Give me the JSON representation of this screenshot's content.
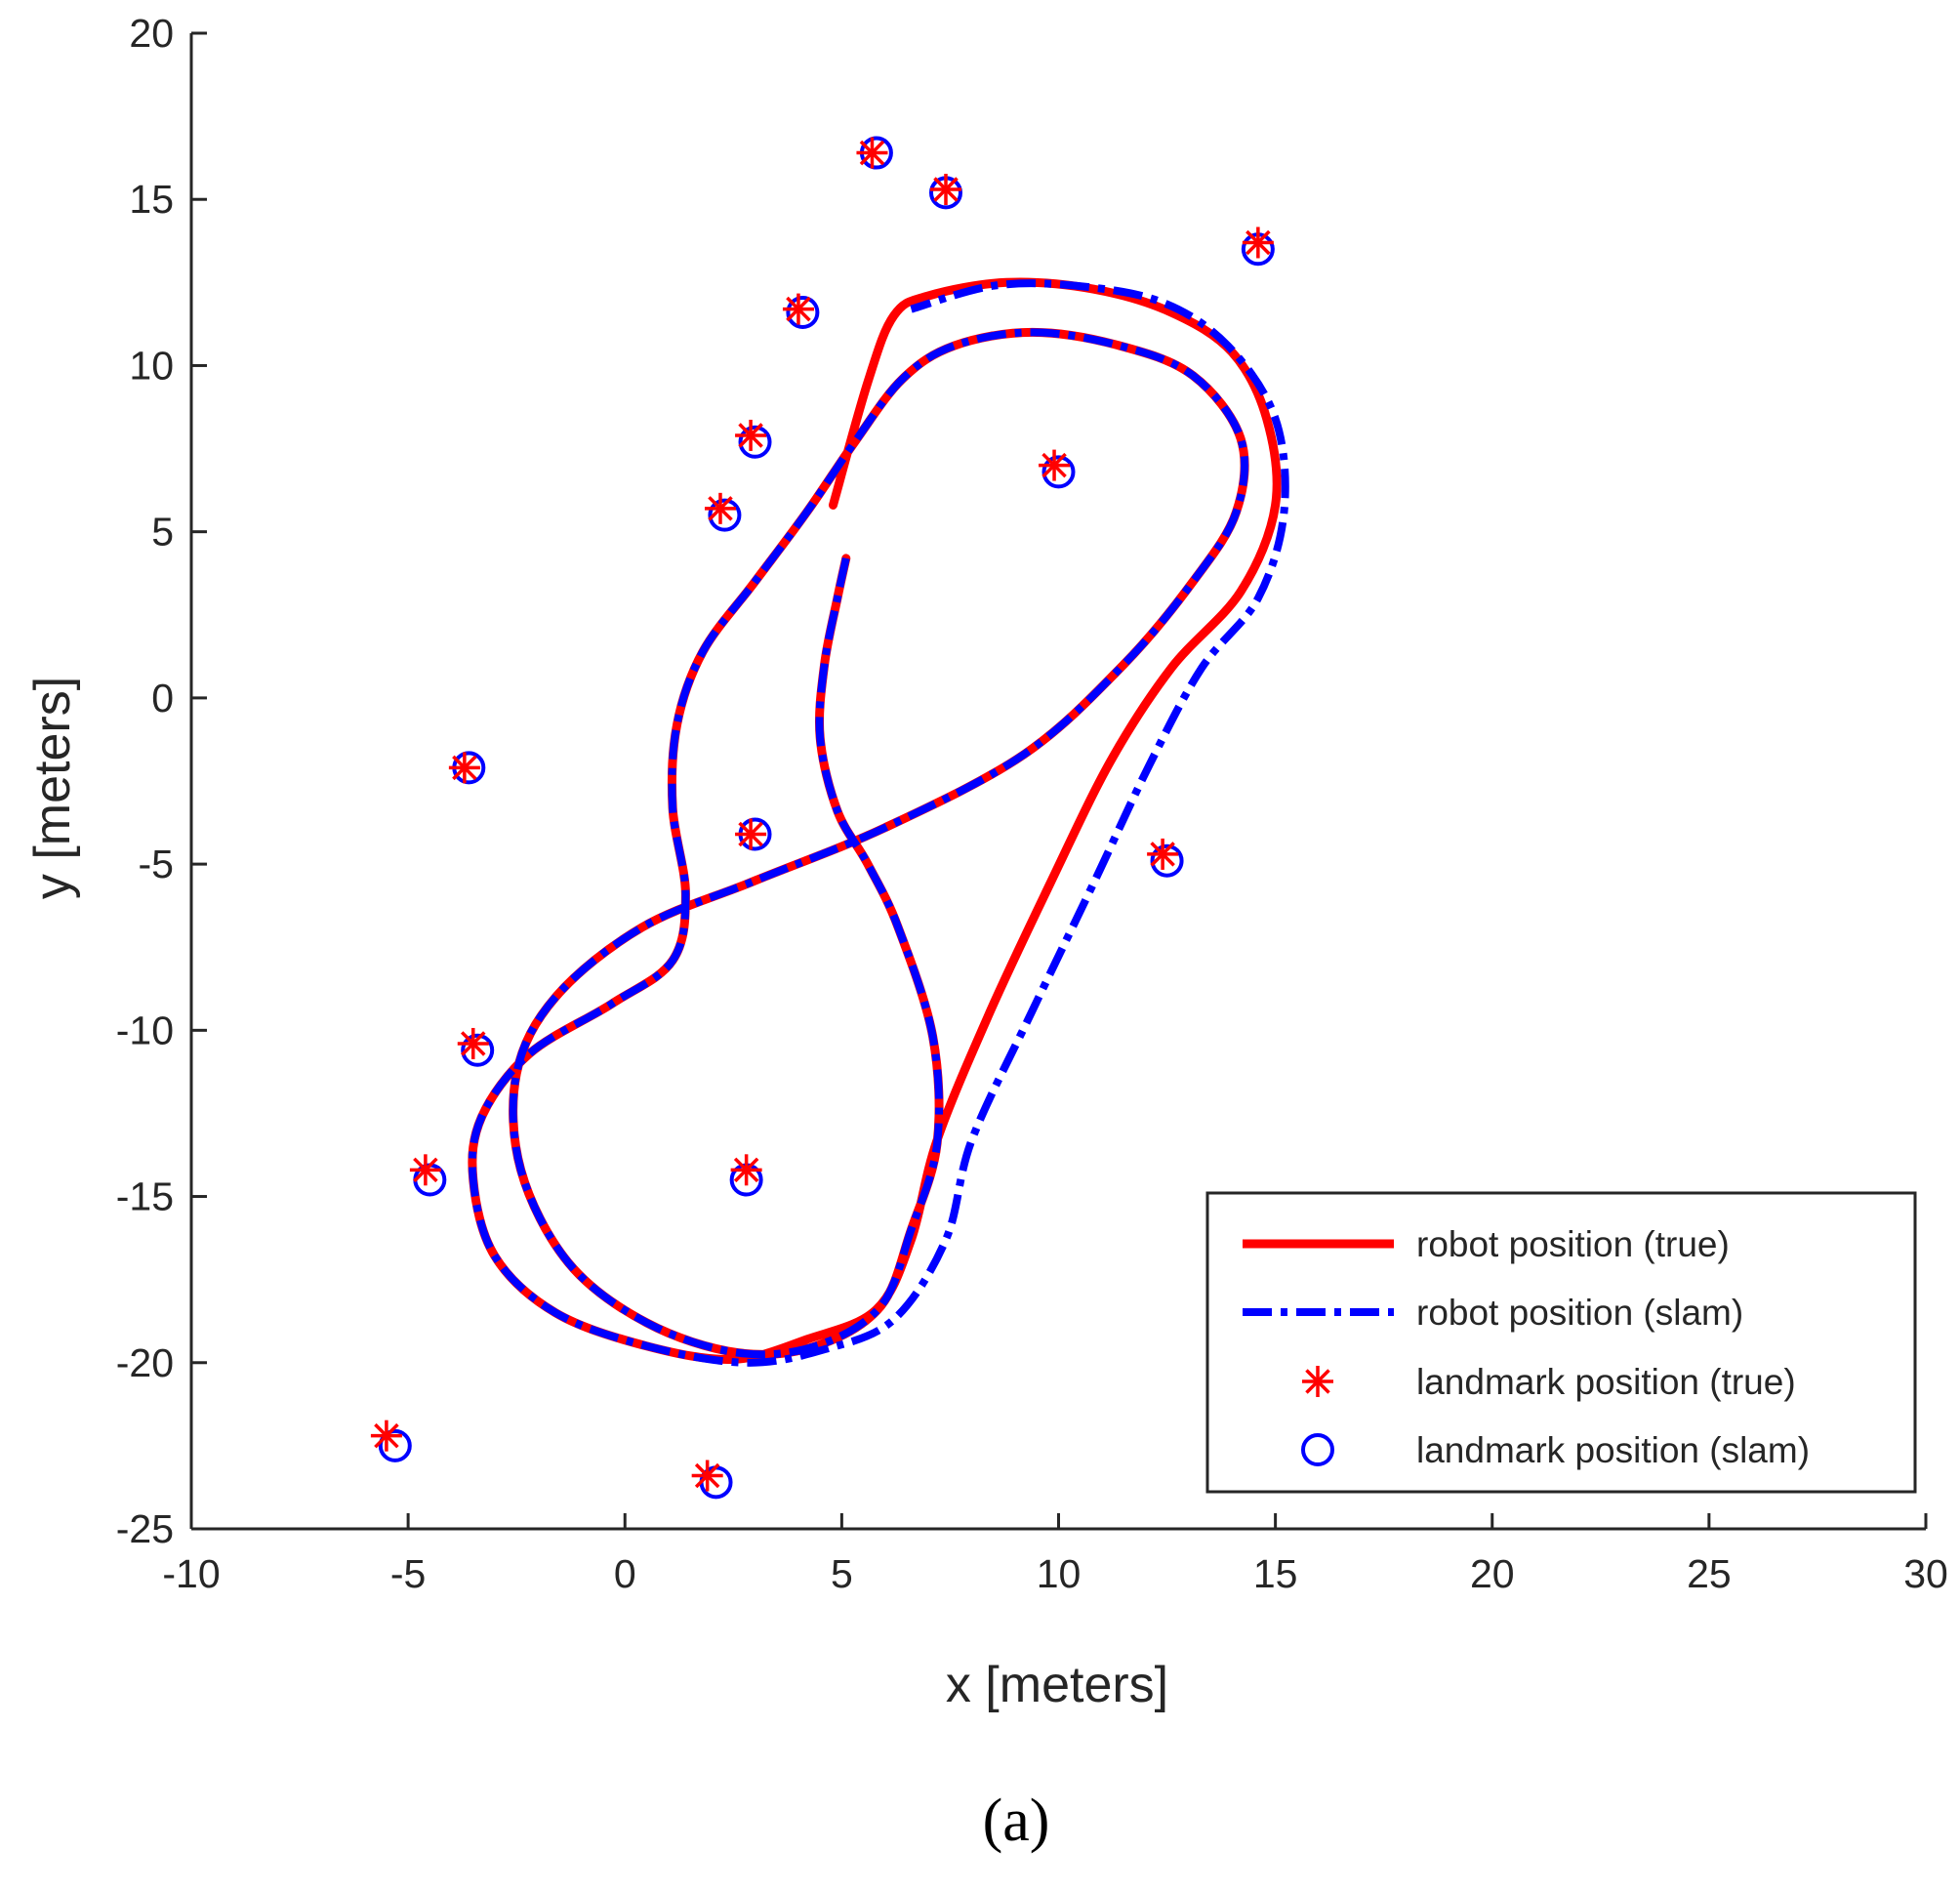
{
  "colors": {
    "true": "#ff0000",
    "slam": "#0000ff",
    "axis": "#262626"
  },
  "chart_data": {
    "type": "scatter",
    "xlabel": "x [meters]",
    "ylabel": "y [meters]",
    "xlim": [
      -10,
      30
    ],
    "ylim": [
      -25,
      20
    ],
    "xticks": [
      -10,
      -5,
      0,
      5,
      10,
      15,
      20,
      25,
      30
    ],
    "yticks": [
      20,
      15,
      10,
      5,
      0,
      -5,
      -10,
      -15,
      -20,
      -25
    ],
    "legend_position": "bottom-right",
    "legend": [
      "robot position (true)",
      "robot position (slam)",
      "landmark position (true)",
      "landmark position (slam)"
    ],
    "series": [
      {
        "name": "robot position (true)",
        "kind": "line",
        "points": [
          [
            4.8,
            5.8
          ],
          [
            5.6,
            9.5
          ],
          [
            6.2,
            11.5
          ],
          [
            7.0,
            12.1
          ],
          [
            8.8,
            12.5
          ],
          [
            10.8,
            12.3
          ],
          [
            12.6,
            11.6
          ],
          [
            14.0,
            10.4
          ],
          [
            14.8,
            8.4
          ],
          [
            15.0,
            5.8
          ],
          [
            14.2,
            3.2
          ],
          [
            12.6,
            0.9
          ],
          [
            11.2,
            -1.9
          ],
          [
            9.8,
            -5.6
          ],
          [
            8.4,
            -9.5
          ],
          [
            7.2,
            -13.3
          ],
          [
            6.6,
            -16.3
          ],
          [
            5.8,
            -18.4
          ],
          [
            4.2,
            -19.3
          ],
          [
            2.5,
            -19.9
          ],
          [
            0.5,
            -19.5
          ],
          [
            -1.6,
            -18.5
          ],
          [
            -3.0,
            -16.8
          ],
          [
            -3.5,
            -14.5
          ],
          [
            -3.3,
            -12.6
          ],
          [
            -2.2,
            -10.7
          ],
          [
            -0.3,
            -9.2
          ],
          [
            1.1,
            -7.9
          ],
          [
            1.4,
            -5.9
          ],
          [
            1.1,
            -3.3
          ],
          [
            1.2,
            -0.8
          ],
          [
            1.8,
            1.4
          ],
          [
            3.0,
            3.5
          ],
          [
            4.2,
            5.6
          ],
          [
            5.3,
            7.7
          ],
          [
            6.4,
            9.6
          ],
          [
            7.6,
            10.6
          ],
          [
            9.4,
            11.0
          ],
          [
            11.4,
            10.6
          ],
          [
            13.1,
            9.7
          ],
          [
            14.2,
            7.8
          ],
          [
            14.1,
            5.6
          ],
          [
            13.1,
            3.5
          ],
          [
            11.5,
            1.0
          ],
          [
            9.2,
            -1.7
          ],
          [
            6.0,
            -3.9
          ],
          [
            3.0,
            -5.5
          ],
          [
            0.4,
            -6.9
          ],
          [
            -1.6,
            -9.0
          ],
          [
            -2.5,
            -11.3
          ],
          [
            -2.4,
            -14.2
          ],
          [
            -1.3,
            -17.0
          ],
          [
            0.5,
            -18.8
          ],
          [
            2.6,
            -19.7
          ],
          [
            4.4,
            -19.5
          ],
          [
            5.9,
            -18.3
          ],
          [
            6.6,
            -16.0
          ],
          [
            7.2,
            -13.4
          ],
          [
            7.1,
            -10.2
          ],
          [
            6.3,
            -6.9
          ],
          [
            5.6,
            -5.0
          ],
          [
            4.9,
            -3.4
          ],
          [
            4.5,
            -1.2
          ],
          [
            4.6,
            1.0
          ],
          [
            4.9,
            3.0
          ],
          [
            5.1,
            4.2
          ]
        ]
      },
      {
        "name": "robot position (slam)",
        "kind": "line",
        "points": [
          [
            5.1,
            4.2
          ],
          [
            4.9,
            3.0
          ],
          [
            4.6,
            1.0
          ],
          [
            4.5,
            -1.2
          ],
          [
            4.9,
            -3.4
          ],
          [
            5.6,
            -5.0
          ],
          [
            6.3,
            -6.9
          ],
          [
            7.1,
            -10.2
          ],
          [
            7.2,
            -13.4
          ],
          [
            6.6,
            -16.0
          ],
          [
            5.9,
            -18.3
          ],
          [
            4.4,
            -19.5
          ],
          [
            2.6,
            -19.7
          ],
          [
            0.5,
            -18.8
          ],
          [
            -1.3,
            -17.0
          ],
          [
            -2.4,
            -14.2
          ],
          [
            -2.5,
            -11.3
          ],
          [
            -1.6,
            -9.0
          ],
          [
            0.4,
            -6.9
          ],
          [
            3.0,
            -5.5
          ],
          [
            6.0,
            -3.9
          ],
          [
            9.2,
            -1.7
          ],
          [
            11.5,
            1.0
          ],
          [
            13.1,
            3.5
          ],
          [
            14.1,
            5.6
          ],
          [
            14.2,
            7.8
          ],
          [
            13.1,
            9.7
          ],
          [
            11.4,
            10.6
          ],
          [
            9.4,
            11.0
          ],
          [
            7.6,
            10.6
          ],
          [
            6.4,
            9.6
          ],
          [
            5.3,
            7.7
          ],
          [
            4.2,
            5.6
          ],
          [
            3.0,
            3.5
          ],
          [
            1.8,
            1.4
          ],
          [
            1.2,
            -0.8
          ],
          [
            1.1,
            -3.3
          ],
          [
            1.4,
            -5.9
          ],
          [
            1.1,
            -7.9
          ],
          [
            -0.3,
            -9.2
          ],
          [
            -2.2,
            -10.7
          ],
          [
            -3.3,
            -12.6
          ],
          [
            -3.5,
            -14.5
          ],
          [
            -3.0,
            -16.8
          ],
          [
            -1.6,
            -18.5
          ],
          [
            0.5,
            -19.5
          ],
          [
            2.8,
            -20.0
          ],
          [
            4.6,
            -19.6
          ],
          [
            6.2,
            -18.7
          ],
          [
            7.4,
            -16.3
          ],
          [
            8.0,
            -13.3
          ],
          [
            9.4,
            -9.4
          ],
          [
            10.8,
            -5.6
          ],
          [
            12.1,
            -2.0
          ],
          [
            13.3,
            0.9
          ],
          [
            14.6,
            3.0
          ],
          [
            15.2,
            5.6
          ],
          [
            15.0,
            8.4
          ],
          [
            13.9,
            10.6
          ],
          [
            12.4,
            11.9
          ],
          [
            10.4,
            12.4
          ],
          [
            8.5,
            12.4
          ],
          [
            6.6,
            11.7
          ]
        ]
      },
      {
        "name": "landmark position (true)",
        "kind": "markers",
        "points": [
          [
            5.7,
            16.4
          ],
          [
            7.4,
            15.3
          ],
          [
            14.6,
            13.7
          ],
          [
            4.0,
            11.7
          ],
          [
            2.9,
            7.9
          ],
          [
            2.2,
            5.7
          ],
          [
            9.9,
            7.0
          ],
          [
            -3.7,
            -2.1
          ],
          [
            2.9,
            -4.1
          ],
          [
            12.4,
            -4.7
          ],
          [
            -3.5,
            -10.4
          ],
          [
            -4.6,
            -14.2
          ],
          [
            2.8,
            -14.2
          ],
          [
            -5.5,
            -22.2
          ],
          [
            1.9,
            -23.4
          ]
        ]
      },
      {
        "name": "landmark position (slam)",
        "kind": "markers",
        "points": [
          [
            5.8,
            16.4
          ],
          [
            7.4,
            15.2
          ],
          [
            14.6,
            13.5
          ],
          [
            4.1,
            11.6
          ],
          [
            3.0,
            7.7
          ],
          [
            2.3,
            5.5
          ],
          [
            10.0,
            6.8
          ],
          [
            -3.6,
            -2.1
          ],
          [
            3.0,
            -4.1
          ],
          [
            12.5,
            -4.9
          ],
          [
            -3.4,
            -10.6
          ],
          [
            -4.5,
            -14.5
          ],
          [
            2.8,
            -14.5
          ],
          [
            -5.3,
            -22.5
          ],
          [
            2.1,
            -23.6
          ]
        ]
      }
    ]
  },
  "caption": "(a)"
}
